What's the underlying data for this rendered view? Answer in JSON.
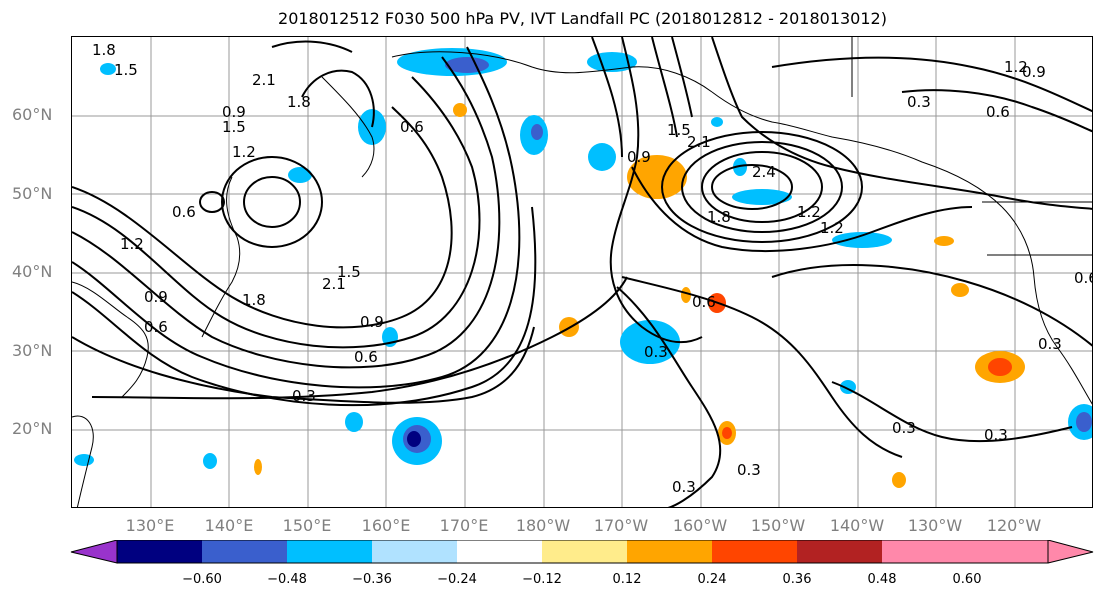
{
  "title": "2018012512 F030 500 hPa PV, IVT Landfall PC (2018012812 - 2018013012)",
  "lat_labels": [
    "60°N",
    "50°N",
    "40°N",
    "30°N",
    "20°N"
  ],
  "lon_labels": [
    "130°E",
    "140°E",
    "150°E",
    "160°E",
    "170°E",
    "180°W",
    "170°W",
    "160°W",
    "150°W",
    "140°W",
    "130°W",
    "120°W"
  ],
  "contour_labels": [
    "1.8",
    "1.5",
    "2.1",
    "1.8",
    "1.5",
    "0.9",
    "1.2",
    "0.6",
    "1.2",
    "0.9",
    "0.6",
    "2.1",
    "1.5",
    "1.8",
    "0.9",
    "0.6",
    "0.3",
    "0.6",
    "0.9",
    "1.5",
    "2.1",
    "2.4",
    "1.8",
    "1.2",
    "1.2",
    "0.6",
    "0.3",
    "0.3",
    "0.3",
    "0.3",
    "0.3",
    "0.3",
    "0.6",
    "0.9",
    "1.2",
    "0.3",
    "0.6"
  ],
  "colorbar": {
    "ticks": [
      "−0.60",
      "−0.48",
      "−0.36",
      "−0.24",
      "−0.12",
      "0.12",
      "0.24",
      "0.36",
      "0.48",
      "0.60"
    ],
    "colors": [
      "#9933cc",
      "#000080",
      "#3a5fcd",
      "#00bfff",
      "#b0e2ff",
      "#ffffff",
      "#ffec8b",
      "#ffa500",
      "#ff4500",
      "#b22222",
      "#ff88aa"
    ]
  }
}
